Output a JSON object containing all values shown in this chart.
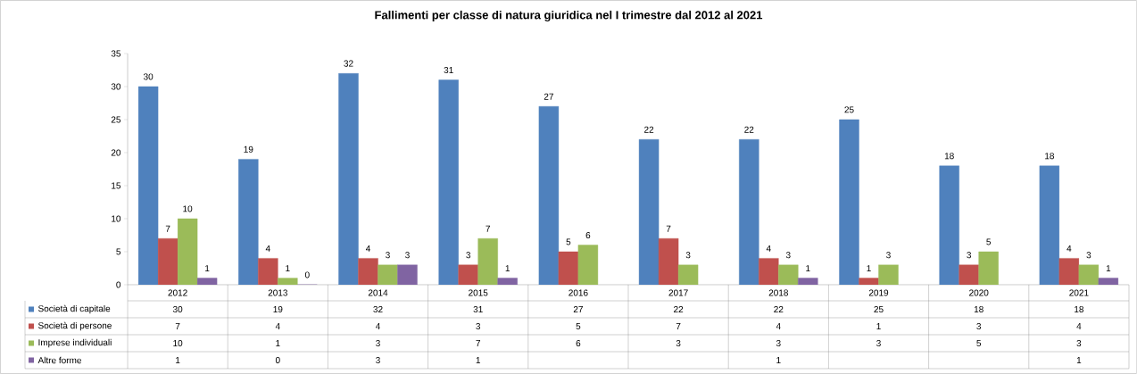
{
  "chart_data": {
    "type": "bar",
    "title": "Fallimenti per classe di natura giuridica nel I trimestre dal 2012 al 2021",
    "categories": [
      "2012",
      "2013",
      "2014",
      "2015",
      "2016",
      "2017",
      "2018",
      "2019",
      "2020",
      "2021"
    ],
    "series": [
      {
        "name": "Società di capitale",
        "color": "#4f81bd",
        "values": [
          30,
          19,
          32,
          31,
          27,
          22,
          22,
          25,
          18,
          18
        ],
        "value_labels": [
          "30",
          "19",
          "32",
          "31",
          "27",
          "22",
          "22",
          "25",
          "18",
          "18"
        ]
      },
      {
        "name": "Società di persone",
        "color": "#c0504d",
        "values": [
          7,
          4,
          4,
          3,
          5,
          7,
          4,
          1,
          3,
          4
        ],
        "value_labels": [
          "7",
          "4",
          "4",
          "3",
          "5",
          "7",
          "4",
          "1",
          "3",
          "4"
        ]
      },
      {
        "name": "Imprese individuali",
        "color": "#9bbb59",
        "values": [
          10,
          1,
          3,
          7,
          6,
          3,
          3,
          3,
          5,
          3
        ],
        "value_labels": [
          "10",
          "1",
          "3",
          "7",
          "6",
          "3",
          "3",
          "3",
          "5",
          "3"
        ]
      },
      {
        "name": "Altre forme",
        "color": "#8064a2",
        "values": [
          1,
          0,
          3,
          1,
          null,
          null,
          1,
          null,
          null,
          1
        ],
        "value_labels": [
          "1",
          "0",
          "3",
          "1",
          null,
          null,
          "1",
          null,
          null,
          "1"
        ]
      }
    ],
    "ylim": [
      0,
      35
    ],
    "yticks": [
      0,
      5,
      10,
      15,
      20,
      25,
      30,
      35
    ],
    "data_labels": true,
    "legend": "bottom left",
    "grid": false
  }
}
